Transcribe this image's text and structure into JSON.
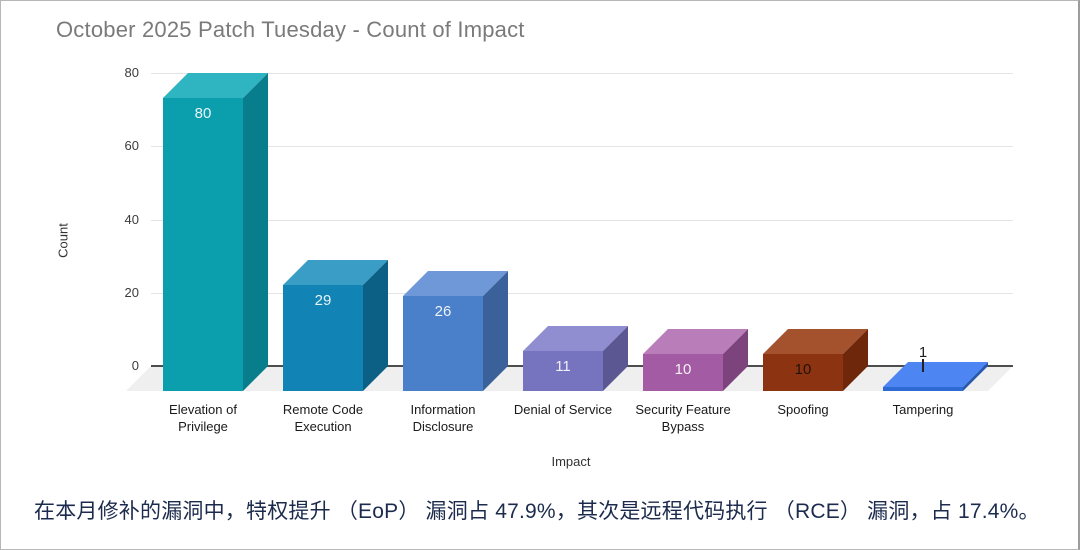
{
  "frame": {
    "background": "#ffffff",
    "border_color": "#b0b0b0"
  },
  "chart_data": {
    "type": "bar",
    "style": "3d",
    "title": "October 2025 Patch Tuesday - Count of Impact",
    "xlabel": "Impact",
    "ylabel": "Count",
    "ylim": [
      0,
      80
    ],
    "yticks": [
      0,
      20,
      40,
      60,
      80
    ],
    "grid": true,
    "legend_position": "none",
    "categories": [
      "Elevation of Privilege",
      "Remote Code Execution",
      "Information Disclosure",
      "Denial of Service",
      "Security Feature Bypass",
      "Spoofing",
      "Tampering"
    ],
    "values": [
      80,
      29,
      26,
      11,
      10,
      10,
      1
    ],
    "bars": [
      {
        "category": "Elevation of Privilege",
        "label_lines": [
          "Elevation of",
          "Privilege"
        ],
        "value": 80,
        "value_label_position": "inside",
        "colors": {
          "front": "#0b9fae",
          "top": "#2fb4c1",
          "side": "#087e8c",
          "label": "#eaf6f7"
        }
      },
      {
        "category": "Remote Code Execution",
        "label_lines": [
          "Remote Code",
          "Execution"
        ],
        "value": 29,
        "value_label_position": "inside",
        "colors": {
          "front": "#1183b4",
          "top": "#3a9dc5",
          "side": "#0c6086",
          "label": "#e8f3f8"
        }
      },
      {
        "category": "Information Disclosure",
        "label_lines": [
          "Information",
          "Disclosure"
        ],
        "value": 26,
        "value_label_position": "inside",
        "colors": {
          "front": "#4a7fca",
          "top": "#6e98d8",
          "side": "#3a6199",
          "label": "#eef2fa"
        }
      },
      {
        "category": "Denial of Service",
        "label_lines": [
          "Denial of Service"
        ],
        "value": 11,
        "value_label_position": "inside",
        "colors": {
          "front": "#7673bf",
          "top": "#908dd0",
          "side": "#5a5793",
          "label": "#f0effa"
        }
      },
      {
        "category": "Security Feature Bypass",
        "label_lines": [
          "Security Feature",
          "Bypass"
        ],
        "value": 10,
        "value_label_position": "inside",
        "colors": {
          "front": "#a35ca3",
          "top": "#b97db9",
          "side": "#7c437c",
          "label": "#f7eef7"
        }
      },
      {
        "category": "Spoofing",
        "label_lines": [
          "Spoofing"
        ],
        "value": 10,
        "value_label_position": "inside",
        "colors": {
          "front": "#8c3411",
          "top": "#a4512e",
          "side": "#6e270b",
          "label": "#241007"
        }
      },
      {
        "category": "Tampering",
        "label_lines": [
          "Tampering"
        ],
        "value": 1,
        "value_label_position": "above",
        "colors": {
          "front": "#2e6ad4",
          "top": "#4d86f2",
          "side": "#2758ab",
          "label": "#1f1f1f"
        }
      }
    ],
    "title_color": "#7a7a7a",
    "axis_text_color": "#3c3c3c",
    "gridline_color": "#e4e4e4",
    "zero_line_color": "#4d4d4d",
    "floor_color": "#efefef"
  },
  "caption": {
    "text": "在本月修补的漏洞中，特权提升 （EoP） 漏洞占 47.9%，其次是远程代码执行 （RCE） 漏洞，占 17.4%。",
    "color": "#1c2b4d"
  }
}
